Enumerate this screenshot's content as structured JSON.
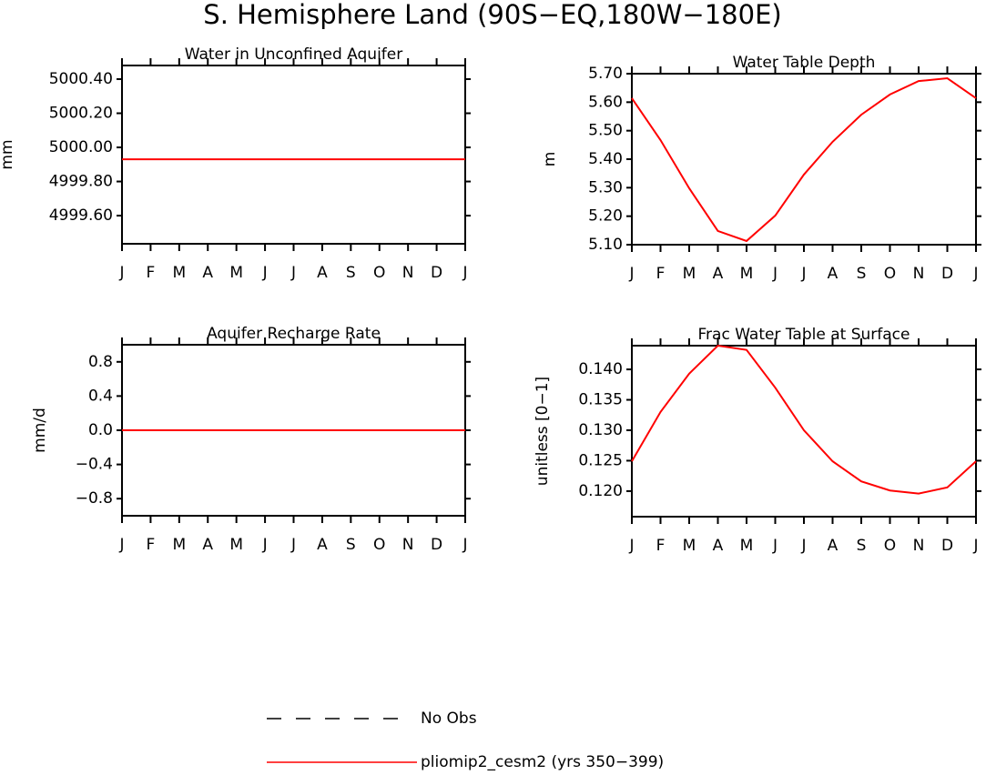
{
  "title": "S. Hemisphere Land (90S−EQ,180W−180E)",
  "legend": [
    {
      "name": "No Obs",
      "color": "#000000",
      "dashed": true
    },
    {
      "name": "pliomip2_cesm2 (yrs 350−399)",
      "color": "#ff0000",
      "dashed": false
    }
  ],
  "chart_data": [
    {
      "type": "line",
      "title": "Water in Unconfined Aquifer",
      "ylabel": "mm",
      "categories": [
        "J",
        "F",
        "M",
        "A",
        "M",
        "J",
        "J",
        "A",
        "S",
        "O",
        "N",
        "D",
        "J"
      ],
      "values": [
        4999.93,
        4999.93,
        4999.93,
        4999.93,
        4999.93,
        4999.93,
        4999.93,
        4999.93,
        4999.93,
        4999.93,
        4999.93,
        4999.93,
        4999.93
      ],
      "color": "#ff0000",
      "ylim": [
        4999.435,
        5000.48
      ],
      "yticks": [
        {
          "value": 4999.6,
          "label": "4999.60"
        },
        {
          "value": 4999.8,
          "label": "4999.80"
        },
        {
          "value": 5000.0,
          "label": "5000.00"
        },
        {
          "value": 5000.2,
          "label": "5000.20"
        },
        {
          "value": 5000.4,
          "label": "5000.40"
        }
      ]
    },
    {
      "type": "line",
      "title": "Water Table Depth",
      "ylabel": "m",
      "categories": [
        "J",
        "F",
        "M",
        "A",
        "M",
        "J",
        "J",
        "A",
        "S",
        "O",
        "N",
        "D",
        "J"
      ],
      "values": [
        5.614,
        5.467,
        5.298,
        5.148,
        5.113,
        5.202,
        5.346,
        5.461,
        5.556,
        5.627,
        5.674,
        5.684,
        5.614
      ],
      "color": "#ff0000",
      "ylim": [
        5.1,
        5.7
      ],
      "yticks": [
        {
          "value": 5.1,
          "label": "5.10"
        },
        {
          "value": 5.2,
          "label": "5.20"
        },
        {
          "value": 5.3,
          "label": "5.30"
        },
        {
          "value": 5.4,
          "label": "5.40"
        },
        {
          "value": 5.5,
          "label": "5.50"
        },
        {
          "value": 5.6,
          "label": "5.60"
        },
        {
          "value": 5.7,
          "label": "5.70"
        }
      ]
    },
    {
      "type": "line",
      "title": "Aquifer Recharge Rate",
      "ylabel": "mm/d",
      "categories": [
        "J",
        "F",
        "M",
        "A",
        "M",
        "J",
        "J",
        "A",
        "S",
        "O",
        "N",
        "D",
        "J"
      ],
      "values": [
        0,
        0,
        0,
        0,
        0,
        0,
        0,
        0,
        0,
        0,
        0,
        0,
        0
      ],
      "color": "#ff0000",
      "ylim": [
        -1,
        1
      ],
      "yticks": [
        {
          "value": -0.8,
          "label": "−0.8"
        },
        {
          "value": -0.4,
          "label": "−0.4"
        },
        {
          "value": 0,
          "label": "0.0"
        },
        0.4,
        0.8
      ]
    },
    {
      "type": "line",
      "title": "Frac Water Table at Surface",
      "ylabel": "unitless [0−1]",
      "categories": [
        "J",
        "F",
        "M",
        "A",
        "M",
        "J",
        "J",
        "A",
        "S",
        "O",
        "N",
        "D",
        "J"
      ],
      "values": [
        0.1249,
        0.133,
        0.1393,
        0.1439,
        0.1432,
        0.137,
        0.13,
        0.1249,
        0.1216,
        0.1201,
        0.1196,
        0.1206,
        0.1249
      ],
      "color": "#ff0000",
      "ylim": [
        0.1158,
        0.1439
      ],
      "yticks": [
        {
          "value": 0.12,
          "label": "0.120"
        },
        0.125,
        {
          "value": 0.13,
          "label": "0.130"
        },
        0.135,
        {
          "value": 0.14,
          "label": "0.140"
        }
      ]
    }
  ]
}
